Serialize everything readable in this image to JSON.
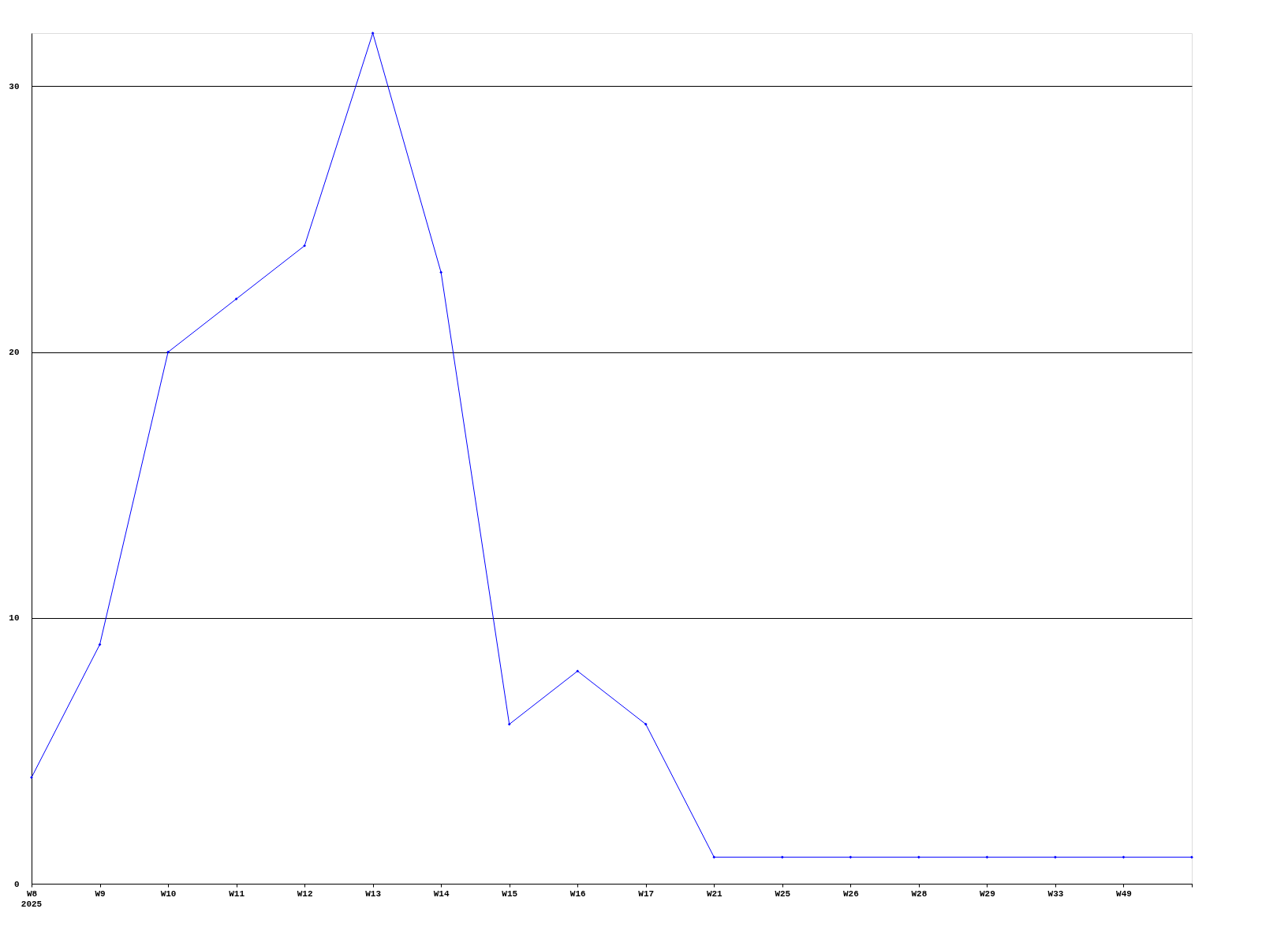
{
  "chart_data": {
    "type": "line",
    "categories": [
      "W8",
      "W9",
      "W10",
      "W11",
      "W12",
      "W13",
      "W14",
      "W15",
      "W16",
      "W17",
      "W21",
      "W25",
      "W26",
      "W28",
      "W29",
      "W33",
      "W49",
      null
    ],
    "series": [
      {
        "color": "#0000ff",
        "values": [
          4,
          9,
          20,
          22,
          24,
          32,
          23,
          6,
          8,
          6,
          1,
          1,
          1,
          1,
          1,
          1,
          1,
          1
        ]
      }
    ],
    "annotations": [
      "2025"
    ],
    "ylim": [
      0,
      32
    ],
    "yticks": [
      0,
      10,
      20,
      30
    ],
    "grid": "y",
    "marker": "diamond",
    "line_style": "solid",
    "legend": false
  }
}
